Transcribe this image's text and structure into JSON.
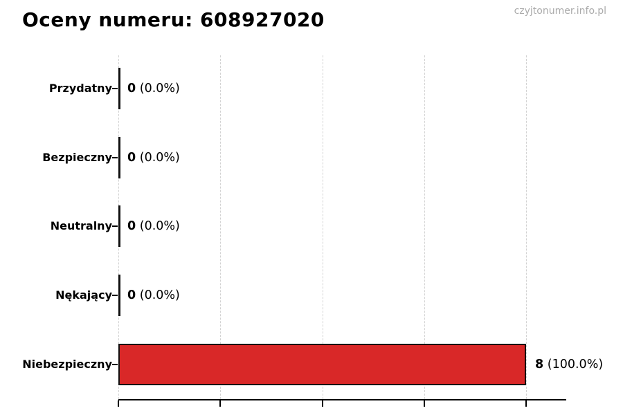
{
  "header": {
    "title": "Oceny numeru: 608927020",
    "watermark": "czyjtonumer.info.pl"
  },
  "chart_data": {
    "type": "bar",
    "orientation": "horizontal",
    "title": "Oceny numeru: 608927020",
    "categories": [
      "Przydatny",
      "Bezpieczny",
      "Neutralny",
      "Nękający",
      "Niebezpieczny"
    ],
    "values": [
      0,
      0,
      0,
      0,
      8
    ],
    "percentages": [
      0.0,
      0.0,
      0.0,
      0.0,
      100.0
    ],
    "rows": [
      {
        "label": "Przydatny",
        "count": "0",
        "percent": "(0.0%)",
        "value": 0
      },
      {
        "label": "Bezpieczny",
        "count": "0",
        "percent": "(0.0%)",
        "value": 0
      },
      {
        "label": "Neutralny",
        "count": "0",
        "percent": "(0.0%)",
        "value": 0
      },
      {
        "label": "Nękający",
        "count": "0",
        "percent": "(0.0%)",
        "value": 0
      },
      {
        "label": "Niebezpieczny",
        "count": "8",
        "percent": "(100.0%)",
        "value": 8
      }
    ],
    "xlabel": "",
    "ylabel": "",
    "xlim": [
      0,
      8.8
    ],
    "xticks": [
      0,
      2,
      4,
      6,
      8
    ],
    "xtick_labels_visible": false,
    "grid": "vertical-dashed",
    "legend": "none",
    "bar_color": "#d92828",
    "bar_edge_color": "#111111",
    "grid_color": "#d2d2d2",
    "watermark_color": "#ababab"
  }
}
